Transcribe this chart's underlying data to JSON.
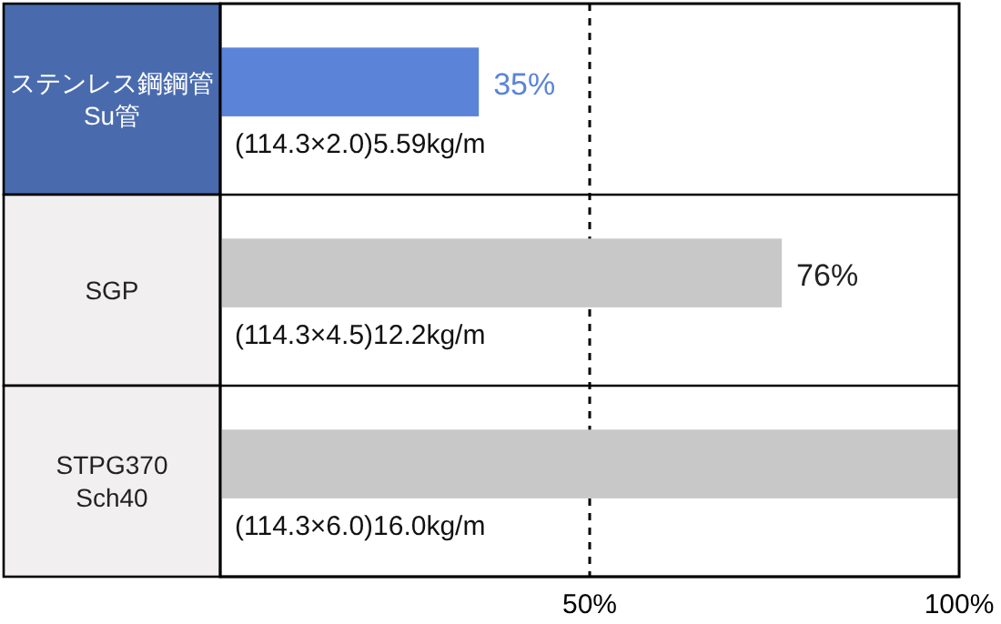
{
  "chart_data": {
    "type": "bar",
    "orientation": "horizontal",
    "categories": [
      "ステンレス鋼鋼管\nSu管",
      "SGP",
      "STPG370\nSch40"
    ],
    "values": [
      35,
      76,
      100
    ],
    "colors": [
      "#5b84d8",
      "#c8c8c8",
      "#c8c8c8"
    ],
    "value_labels": [
      "35%",
      "76%",
      null
    ],
    "xlim": [
      0,
      100
    ],
    "xticks": [
      {
        "value": 50,
        "label": "50%"
      },
      {
        "value": 100,
        "label": "100%"
      }
    ],
    "ref_lines": [
      {
        "axis": "x",
        "value": 50,
        "line_style": "dashed"
      }
    ],
    "annotations": [
      "(114.3×2.0)5.59kg/m",
      "(114.3×4.5)12.2kg/m",
      "(114.3×6.0)16.0kg/m"
    ],
    "grid": false
  }
}
